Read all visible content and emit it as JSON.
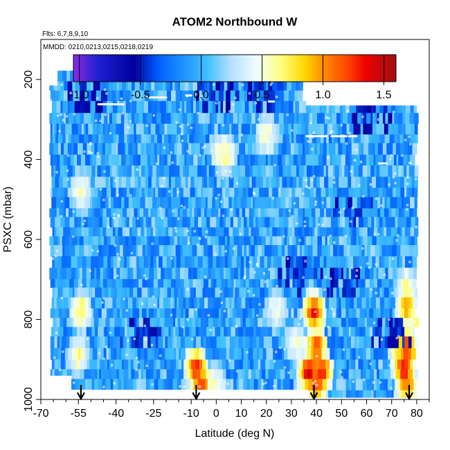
{
  "chart_data": {
    "type": "heatmap",
    "title": "ATOM2 Northbound W",
    "flights_label": "Flts: 6,7,8,9,10",
    "dates_label": "MMDD: 0210,0213,0215,0218,0219",
    "xlabel": "Latitude (deg N)",
    "ylabel": "PSXC (mbar)",
    "xlim": [
      -70,
      85
    ],
    "ylim": [
      1000,
      100
    ],
    "x_ticks": [
      -70,
      -55,
      -40,
      -25,
      -10,
      0,
      10,
      20,
      30,
      40,
      50,
      60,
      70,
      80
    ],
    "x_tick_labels": [
      "-70",
      "-55",
      "-40",
      "-25",
      "-10",
      "0",
      "10",
      "20",
      "30",
      "40",
      "50",
      "60",
      "70",
      "80"
    ],
    "x_minor_ticks": [
      -65,
      -60,
      -50,
      -45,
      -35,
      -30,
      -20,
      -15,
      -5,
      5,
      15,
      25,
      35,
      45,
      55,
      65,
      75,
      85
    ],
    "y_ticks": [
      200,
      400,
      600,
      800,
      1000
    ],
    "y_tick_labels": [
      "200",
      "400",
      "600",
      "800",
      "1000"
    ],
    "colorbar": {
      "range": [
        -1.05,
        1.6
      ],
      "ticks": [
        -1.0,
        -0.5,
        0.0,
        0.5,
        1.0,
        1.5
      ],
      "tick_labels": [
        "-1.0",
        "-0.5",
        "0.0",
        "0.5",
        "1.0",
        "1.5"
      ],
      "stops": [
        {
          "v": -1.05,
          "c": "#8a2be2"
        },
        {
          "v": -0.85,
          "c": "#2020d0"
        },
        {
          "v": -0.55,
          "c": "#0000a0"
        },
        {
          "v": -0.35,
          "c": "#0060ff"
        },
        {
          "v": -0.15,
          "c": "#1e90ff"
        },
        {
          "v": 0.05,
          "c": "#40c0ff"
        },
        {
          "v": 0.25,
          "c": "#b8e0ff"
        },
        {
          "v": 0.45,
          "c": "#eefcff"
        },
        {
          "v": 0.65,
          "c": "#ffff80"
        },
        {
          "v": 0.85,
          "c": "#ffd700"
        },
        {
          "v": 1.0,
          "c": "#ff8c00"
        },
        {
          "v": 1.2,
          "c": "#ff4500"
        },
        {
          "v": 1.35,
          "c": "#ee0000"
        },
        {
          "v": 1.6,
          "c": "#a01010"
        }
      ]
    },
    "profile_markers_lat": [
      -54,
      -8,
      39,
      77
    ],
    "hotspots": [
      {
        "lat": -54,
        "p": 480,
        "w": 0.55
      },
      {
        "lat": -54,
        "p": 780,
        "w": 0.75
      },
      {
        "lat": -55,
        "p": 890,
        "w": 0.65
      },
      {
        "lat": -8,
        "p": 920,
        "w": 1.3
      },
      {
        "lat": -6,
        "p": 960,
        "w": 1.2
      },
      {
        "lat": 0,
        "p": 960,
        "w": 0.55
      },
      {
        "lat": 2,
        "p": 380,
        "w": 0.6
      },
      {
        "lat": 4,
        "p": 390,
        "w": 0.6
      },
      {
        "lat": 20,
        "p": 340,
        "w": 0.6
      },
      {
        "lat": 24,
        "p": 780,
        "w": 0.5
      },
      {
        "lat": 39,
        "p": 780,
        "w": 1.3
      },
      {
        "lat": 40,
        "p": 870,
        "w": 1.2
      },
      {
        "lat": 37,
        "p": 930,
        "w": 1.45
      },
      {
        "lat": 42,
        "p": 930,
        "w": 1.35
      },
      {
        "lat": 40,
        "p": 960,
        "w": 1.2
      },
      {
        "lat": 32,
        "p": 860,
        "w": 0.55
      },
      {
        "lat": 76,
        "p": 720,
        "w": 0.65
      },
      {
        "lat": 76,
        "p": 770,
        "w": 0.95
      },
      {
        "lat": 76,
        "p": 870,
        "w": 1.3
      },
      {
        "lat": 75,
        "p": 925,
        "w": 1.35
      },
      {
        "lat": 76,
        "p": 960,
        "w": 1.1
      },
      {
        "lat": 73,
        "p": 870,
        "w": 0.9
      },
      {
        "lat": 80,
        "p": 810,
        "w": 0.6
      }
    ],
    "dark_regions": [
      {
        "lat": -52,
        "p": 240,
        "w": -0.55
      },
      {
        "lat": 0,
        "p": 240,
        "w": -0.5
      },
      {
        "lat": 20,
        "p": 230,
        "w": -0.45
      },
      {
        "lat": 62,
        "p": 300,
        "w": -0.55
      },
      {
        "lat": 50,
        "p": 700,
        "w": -0.5
      },
      {
        "lat": 33,
        "p": 690,
        "w": -0.45
      },
      {
        "lat": -30,
        "p": 840,
        "w": -0.45
      },
      {
        "lat": 70,
        "p": 840,
        "w": -0.5
      },
      {
        "lat": 55,
        "p": 520,
        "w": -0.45
      }
    ]
  }
}
